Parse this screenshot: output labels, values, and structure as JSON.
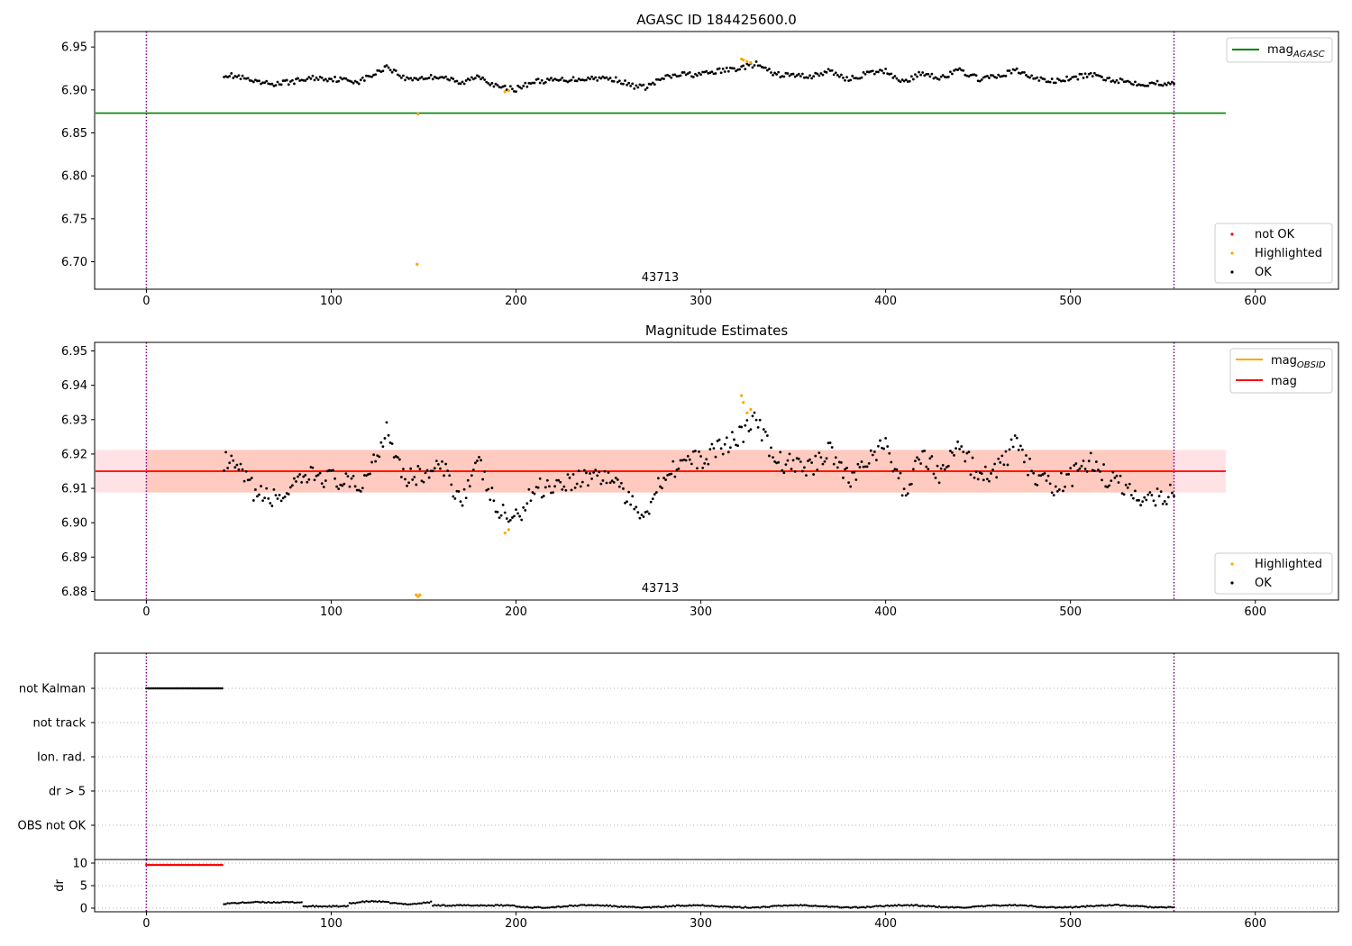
{
  "colors": {
    "ok": "#000000",
    "highlighted": "#ffa500",
    "not_ok": "#ff0000",
    "mag_agasc": "#008000",
    "mag_obsid": "#ffa500",
    "mag": "#ff0000",
    "band_outer": "#ffb6c1",
    "band_inner": "#ffa07a",
    "obs_boundary": "#800080",
    "grid": "#b0b0b0"
  },
  "chart_data": [
    {
      "id": "agasc",
      "type": "scatter",
      "title": "AGASC ID 184425600.0",
      "xlim": [
        -28,
        645
      ],
      "ylim": [
        6.668,
        6.968
      ],
      "xticks": [
        "0",
        "100",
        "200",
        "300",
        "400",
        "500",
        "600"
      ],
      "yticks": [
        "6.70",
        "6.75",
        "6.80",
        "6.85",
        "6.90",
        "6.95"
      ],
      "obsid_label": "43713",
      "obsid_label_x": 278,
      "obs_boundaries": [
        0,
        556
      ],
      "reference_line": {
        "name": "mag_AGASC",
        "value": 6.873,
        "x_range": [
          -28,
          584
        ]
      },
      "legend_lines": [
        {
          "name": "mag",
          "sub": "AGASC"
        }
      ],
      "legend_points": [
        "not OK",
        "Highlighted",
        "OK"
      ],
      "ok_start": 42,
      "ok_end": 556,
      "highlighted": [
        [
          147,
          6.872
        ],
        [
          146.5,
          6.697
        ],
        [
          194,
          6.898
        ],
        [
          196,
          6.899
        ],
        [
          322,
          6.936
        ],
        [
          323,
          6.935
        ],
        [
          325,
          6.933
        ],
        [
          327,
          6.932
        ]
      ]
    },
    {
      "id": "estimates",
      "type": "scatter",
      "title": "Magnitude Estimates",
      "xlim": [
        -28,
        645
      ],
      "ylim": [
        6.8775,
        6.9525
      ],
      "xticks": [
        "0",
        "100",
        "200",
        "300",
        "400",
        "500",
        "600"
      ],
      "yticks": [
        "6.88",
        "6.89",
        "6.90",
        "6.91",
        "6.92",
        "6.93",
        "6.94",
        "6.95"
      ],
      "obsid_label": "43713",
      "obsid_label_x": 278,
      "obs_boundaries": [
        0,
        556
      ],
      "mean": {
        "name": "mag",
        "value": 6.915,
        "x_range": [
          -28,
          584
        ]
      },
      "band_outer": [
        6.9088,
        6.9212
      ],
      "band_inner": [
        6.9088,
        6.9212
      ],
      "band_inner_x": [
        0,
        556
      ],
      "legend_lines": [
        {
          "name": "mag",
          "sub": "OBSID"
        },
        {
          "name": "mag",
          "sub": ""
        }
      ],
      "legend_points": [
        "Highlighted",
        "OK"
      ],
      "ok_start": 42,
      "ok_end": 556,
      "highlighted": [
        [
          322,
          6.937
        ],
        [
          323,
          6.935
        ],
        [
          325,
          6.932
        ],
        [
          327,
          6.933
        ],
        [
          194,
          6.897
        ],
        [
          196,
          6.898
        ],
        [
          146,
          6.879
        ],
        [
          147,
          6.8785
        ],
        [
          148,
          6.879
        ]
      ]
    },
    {
      "id": "flags",
      "type": "scatter",
      "xlim": [
        -28,
        645
      ],
      "categories": [
        "not Kalman",
        "not track",
        "Ion. rad.",
        "dr > 5",
        "OBS not OK"
      ],
      "obs_boundaries": [
        0,
        556
      ],
      "flag_runs": [
        {
          "category": "not Kalman",
          "x_range": [
            0,
            41
          ]
        }
      ]
    },
    {
      "id": "dr",
      "type": "scatter",
      "ylabel": "dr",
      "xlim": [
        -28,
        645
      ],
      "ylim": [
        -0.8,
        10.8
      ],
      "xticks": [
        "0",
        "100",
        "200",
        "300",
        "400",
        "500",
        "600"
      ],
      "yticks": [
        "0",
        "5",
        "10"
      ],
      "obs_boundaries": [
        0,
        556
      ],
      "not_ok_run": {
        "x_range": [
          0,
          41
        ],
        "value": 9.6
      },
      "ok_start": 42,
      "ok_end": 556
    }
  ]
}
